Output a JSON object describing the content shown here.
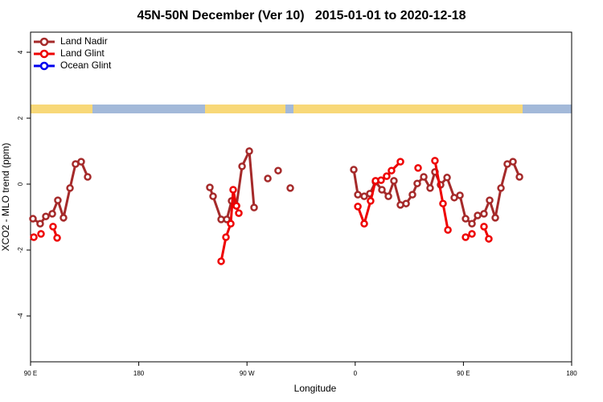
{
  "chart_data": {
    "type": "line",
    "title": "45N-50N December (Ver 10)   2015-01-01 to 2020-12-18",
    "x_label": "Longitude",
    "y_label": "XCO2 - MLO trend (ppm)",
    "xlim": [
      90,
      540
    ],
    "xticks": [
      {
        "value": 90,
        "label": "90 E"
      },
      {
        "value": 180,
        "label": "180"
      },
      {
        "value": 270,
        "label": "90 W"
      },
      {
        "value": 360,
        "label": "0"
      },
      {
        "value": 450,
        "label": "90 E"
      },
      {
        "value": 540,
        "label": "180"
      }
    ],
    "ylim": [
      -5.39,
      4.61
    ],
    "yticks": [
      4,
      2,
      0,
      -2,
      -4
    ],
    "legend": "top-left",
    "series": [
      {
        "name": "Land Nadir",
        "color": "#a52a2a",
        "x": [
          92.0,
          98.0,
          102.7,
          108.1,
          112.7,
          117.4,
          122.8,
          127.4,
          132.1,
          137.5,
          null,
          239.1,
          241.8,
          248.5,
          253.2,
          257.2,
          261.2,
          265.9,
          271.9,
          275.9,
          null,
          287.3,
          null,
          295.9,
          null,
          306.0,
          null,
          358.8,
          362.2,
          367.5,
          372.2,
          376.9,
          382.2,
          387.6,
          392.2,
          397.6,
          402.3,
          407.6,
          411.6,
          417.0,
          422.3,
          426.3,
          431.0,
          436.4,
          442.4,
          447.1,
          451.8,
          457.1,
          461.8,
          467.1,
          471.8,
          476.5,
          481.2,
          486.5,
          491.2,
          496.6
        ],
        "values": [
          -1.05,
          -1.2,
          -0.98,
          -0.9,
          -0.49,
          -1.02,
          -0.12,
          0.61,
          0.68,
          0.22,
          null,
          -0.1,
          -0.37,
          -1.07,
          -1.07,
          -0.51,
          -0.66,
          0.54,
          1.0,
          -0.71,
          null,
          0.17,
          null,
          0.41,
          null,
          -0.12,
          null,
          0.44,
          -0.32,
          -0.37,
          -0.29,
          0.07,
          -0.17,
          -0.37,
          0.1,
          -0.63,
          -0.59,
          -0.32,
          0.02,
          0.22,
          -0.12,
          0.37,
          -0.02,
          0.2,
          -0.41,
          -0.34,
          -1.05,
          -1.2,
          -0.95,
          -0.9,
          -0.49,
          -1.02,
          -0.12,
          0.61,
          0.68,
          0.22
        ]
      },
      {
        "name": "Land Glint",
        "color": "#ee0000",
        "x": [
          92.7,
          null,
          98.7,
          null,
          108.7,
          112.1,
          null,
          248.5,
          252.5,
          256.5,
          258.5,
          261.2,
          263.2,
          null,
          362.2,
          367.5,
          372.8,
          376.9,
          381.5,
          386.2,
          390.2,
          397.6,
          null,
          412.3,
          null,
          426.3,
          433.0,
          437.1,
          null,
          451.8,
          null,
          457.1,
          null,
          467.1,
          471.1
        ],
        "values": [
          -1.61,
          null,
          -1.51,
          null,
          -1.29,
          -1.63,
          null,
          -2.34,
          -1.61,
          -1.2,
          -0.17,
          -0.66,
          -0.88,
          null,
          -0.68,
          -1.2,
          -0.51,
          0.1,
          0.12,
          0.24,
          0.41,
          0.68,
          null,
          0.49,
          null,
          0.71,
          -0.59,
          -1.39,
          null,
          -1.61,
          null,
          -1.51,
          null,
          -1.29,
          -1.66
        ]
      },
      {
        "name": "Ocean Glint",
        "color": "#0000ee",
        "x": [],
        "values": []
      }
    ]
  }
}
